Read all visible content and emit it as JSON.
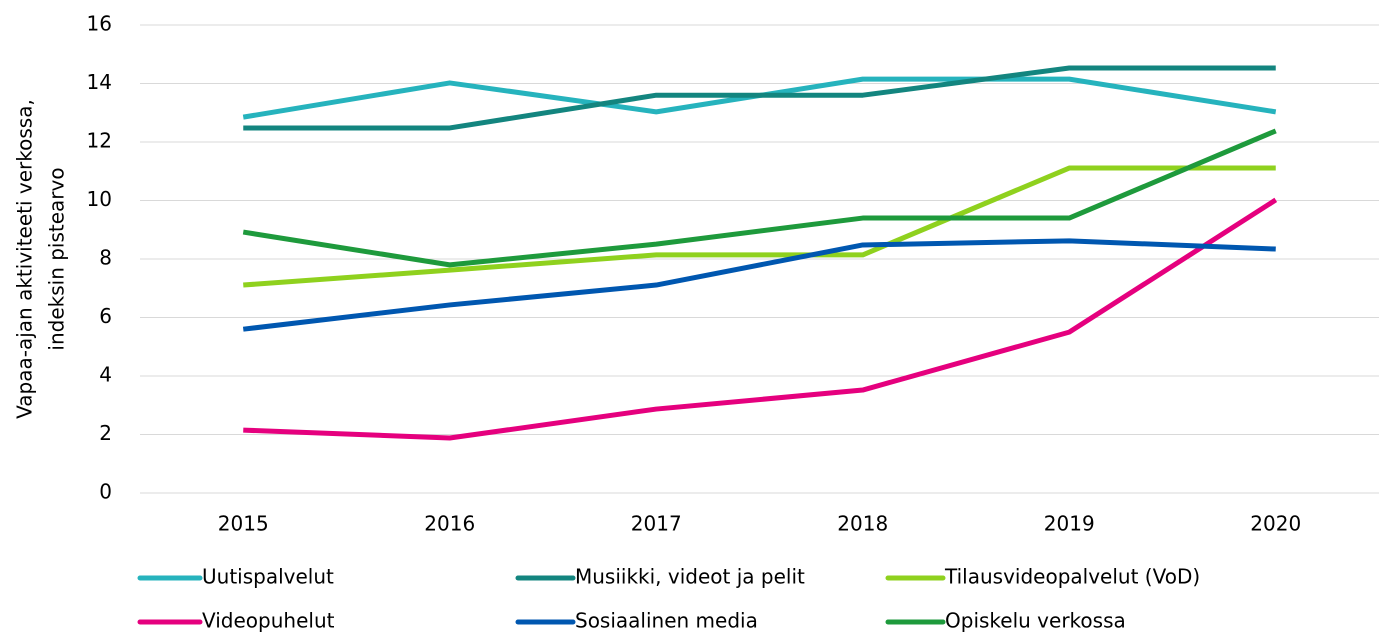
{
  "chart_data": {
    "type": "line",
    "y_label": [
      "Vapaa-ajan aktiviteeti verkossa,",
      "indeksin pistearvo"
    ],
    "categories": [
      "2015",
      "2016",
      "2017",
      "2018",
      "2019",
      "2020"
    ],
    "series": [
      {
        "name": "Uutispalvelut",
        "color": "#26b3bd",
        "values": [
          12.85,
          14.02,
          13.03,
          14.15,
          14.15,
          13.03
        ]
      },
      {
        "name": "Musiikki, videot ja pelit",
        "color": "#13857f",
        "values": [
          12.48,
          12.48,
          13.6,
          13.6,
          14.53,
          14.53
        ]
      },
      {
        "name": "Tilausvideopalvelut (VoD)",
        "color": "#8fd11e",
        "values": [
          7.11,
          7.62,
          8.14,
          8.14,
          11.11,
          11.11
        ]
      },
      {
        "name": "Videopuhelut",
        "color": "#e5007e",
        "values": [
          2.15,
          1.88,
          2.87,
          3.52,
          5.5,
          10.02
        ]
      },
      {
        "name": "Sosiaalinen media",
        "color": "#0057b0",
        "values": [
          5.6,
          6.43,
          7.11,
          8.48,
          8.62,
          8.34
        ]
      },
      {
        "name": "Opiskelu verkossa",
        "color": "#1e9a3c",
        "values": [
          8.92,
          7.8,
          8.51,
          9.4,
          9.4,
          12.38
        ]
      }
    ],
    "ylim": [
      0,
      16
    ],
    "yticks": [
      0,
      2,
      4,
      6,
      8,
      10,
      12,
      14,
      16
    ],
    "grid": true,
    "legend": "bottom"
  }
}
